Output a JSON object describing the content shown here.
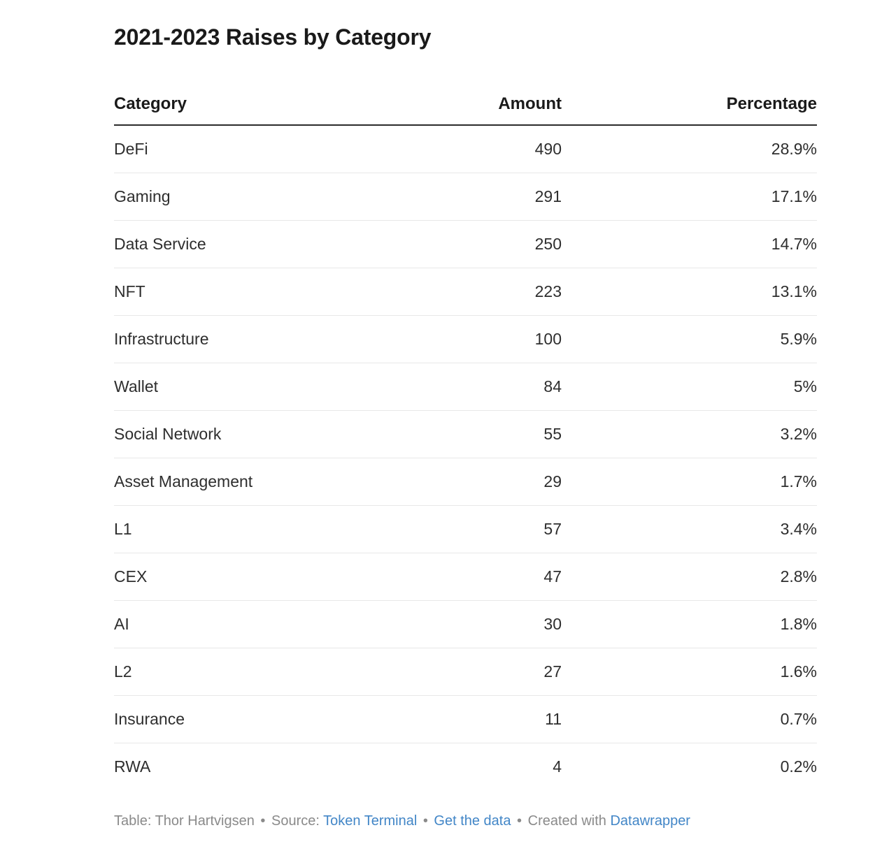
{
  "chart_data": {
    "type": "table",
    "title": "2021-2023 Raises by Category",
    "columns": [
      "Category",
      "Amount",
      "Percentage"
    ],
    "rows": [
      {
        "category": "DeFi",
        "amount": 490,
        "percentage": "28.9%"
      },
      {
        "category": "Gaming",
        "amount": 291,
        "percentage": "17.1%"
      },
      {
        "category": "Data Service",
        "amount": 250,
        "percentage": "14.7%"
      },
      {
        "category": "NFT",
        "amount": 223,
        "percentage": "13.1%"
      },
      {
        "category": "Infrastructure",
        "amount": 100,
        "percentage": "5.9%"
      },
      {
        "category": "Wallet",
        "amount": 84,
        "percentage": "5%"
      },
      {
        "category": "Social Network",
        "amount": 55,
        "percentage": "3.2%"
      },
      {
        "category": "Asset Management",
        "amount": 29,
        "percentage": "1.7%"
      },
      {
        "category": "L1",
        "amount": 57,
        "percentage": "3.4%"
      },
      {
        "category": "CEX",
        "amount": 47,
        "percentage": "2.8%"
      },
      {
        "category": "AI",
        "amount": 30,
        "percentage": "1.8%"
      },
      {
        "category": "L2",
        "amount": 27,
        "percentage": "1.6%"
      },
      {
        "category": "Insurance",
        "amount": 11,
        "percentage": "0.7%"
      },
      {
        "category": "RWA",
        "amount": 4,
        "percentage": "0.2%"
      }
    ],
    "layout": {
      "grid": "horizontal-row-dividers",
      "header_rule": true,
      "legend": "none"
    }
  },
  "footer": {
    "attribution": "Table: Thor Hartvigsen",
    "bullet": "•",
    "source_label": "Source:",
    "created_with_label": "Created with",
    "links": {
      "source": "Token Terminal",
      "get_data": "Get the data",
      "datawrapper": "Datawrapper"
    }
  },
  "colors": {
    "background": "#ffffff",
    "title_text": "#1a1a1a",
    "body_text": "#2e2e2e",
    "header_rule": "#2b2b2b",
    "row_divider": "#e8e8e8",
    "footer_gray": "#8a8a8a",
    "link_blue": "#4286c7"
  }
}
